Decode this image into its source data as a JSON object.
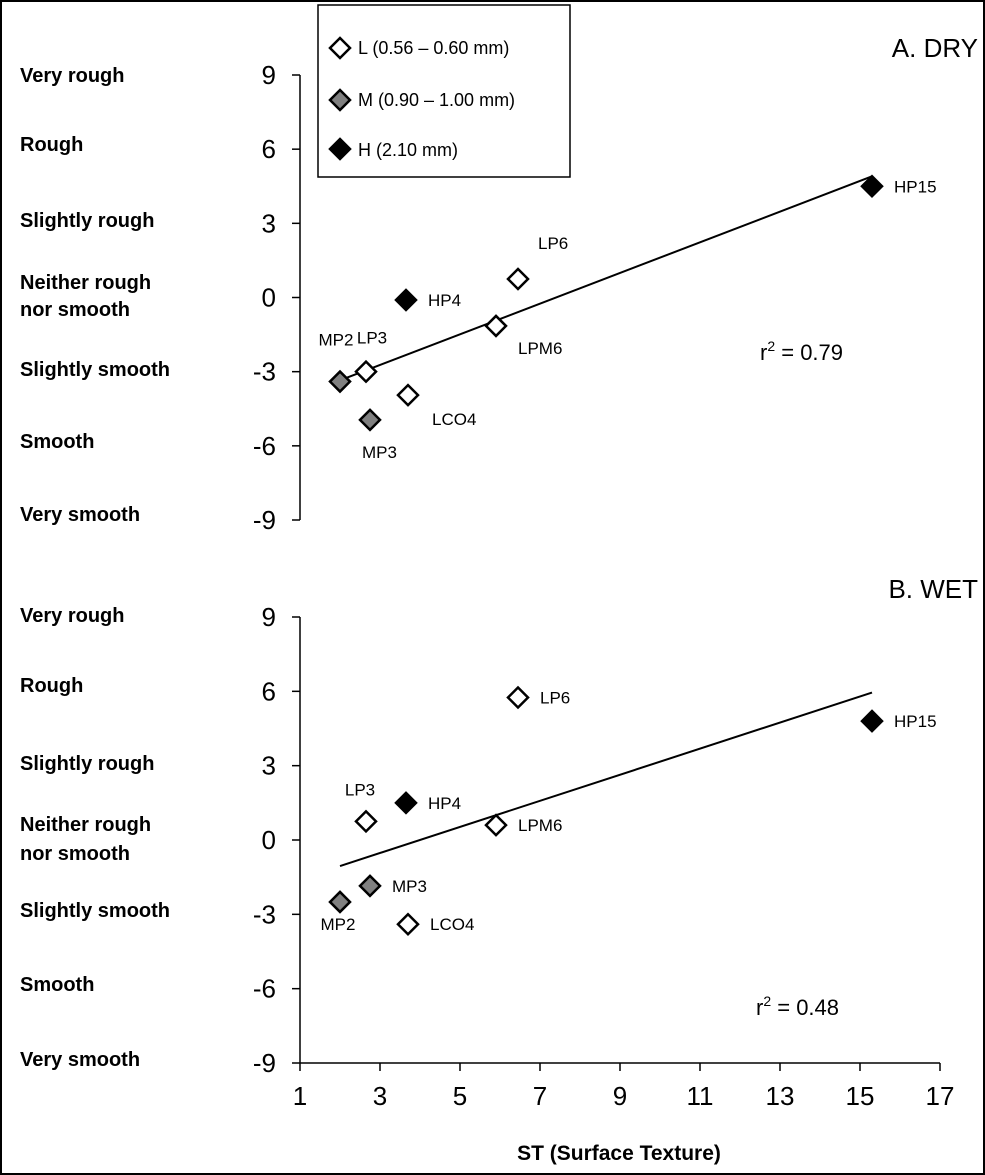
{
  "chart_data": [
    {
      "type": "scatter",
      "title": "A. DRY",
      "annotation": "r² = 0.79",
      "r2_text": "r",
      "r2_sup": "2",
      "r2_value": " = 0.79",
      "xlim": [
        1,
        17
      ],
      "ylim": [
        -9,
        9
      ],
      "yticks": [
        9,
        6,
        3,
        0,
        -3,
        -6,
        -9
      ],
      "y_categories": [
        "Very rough",
        "Rough",
        "Slightly rough",
        "Neither rough nor smooth",
        "Slightly smooth",
        "Smooth",
        "Very smooth"
      ],
      "legend_position": "top-left",
      "points": [
        {
          "label": "HP15",
          "group": "H",
          "x": 15.3,
          "y": 4.5
        },
        {
          "label": "LP6",
          "group": "L",
          "x": 6.45,
          "y": 0.75
        },
        {
          "label": "HP4",
          "group": "H",
          "x": 3.65,
          "y": -0.1
        },
        {
          "label": "LPM6",
          "group": "L",
          "x": 5.9,
          "y": -1.15
        },
        {
          "label": "LP3",
          "group": "L",
          "x": 2.65,
          "y": -3.0
        },
        {
          "label": "MP2",
          "group": "M",
          "x": 2.0,
          "y": -3.4
        },
        {
          "label": "LCO4",
          "group": "L",
          "x": 3.7,
          "y": -3.95
        },
        {
          "label": "MP3",
          "group": "M",
          "x": 2.75,
          "y": -4.95
        }
      ],
      "trendline": {
        "x": [
          2.0,
          15.3
        ],
        "y": [
          -3.35,
          4.9
        ]
      }
    },
    {
      "type": "scatter",
      "title": "B. WET",
      "annotation": "r² = 0.48",
      "r2_text": "r",
      "r2_sup": "2",
      "r2_value": " = 0.48",
      "xlabel": "ST (Surface Texture)",
      "xlim": [
        1,
        17
      ],
      "ylim": [
        -9,
        9
      ],
      "xticks": [
        1,
        3,
        5,
        7,
        9,
        11,
        13,
        15,
        17
      ],
      "yticks": [
        9,
        6,
        3,
        0,
        -3,
        -6,
        -9
      ],
      "y_categories": [
        "Very rough",
        "Rough",
        "Slightly rough",
        "Neither rough nor smooth",
        "Slightly smooth",
        "Smooth",
        "Very smooth"
      ],
      "points": [
        {
          "label": "LP6",
          "group": "L",
          "x": 6.45,
          "y": 5.75
        },
        {
          "label": "HP15",
          "group": "H",
          "x": 15.3,
          "y": 4.8
        },
        {
          "label": "HP4",
          "group": "H",
          "x": 3.65,
          "y": 1.5
        },
        {
          "label": "LP3",
          "group": "L",
          "x": 2.65,
          "y": 0.75
        },
        {
          "label": "LPM6",
          "group": "L",
          "x": 5.9,
          "y": 0.6
        },
        {
          "label": "MP3",
          "group": "M",
          "x": 2.75,
          "y": -1.85
        },
        {
          "label": "MP2",
          "group": "M",
          "x": 2.0,
          "y": -2.5
        },
        {
          "label": "LCO4",
          "group": "L",
          "x": 3.7,
          "y": -3.4
        }
      ],
      "trendline": {
        "x": [
          2.0,
          15.3
        ],
        "y": [
          -1.05,
          5.95
        ]
      }
    }
  ],
  "legend": [
    {
      "group": "L",
      "label": "L (0.56 – 0.60 mm)",
      "fill": "#ffffff",
      "stroke": "#000000"
    },
    {
      "group": "M",
      "label": "M (0.90 – 1.00 mm)",
      "fill": "#808080",
      "stroke": "#000000"
    },
    {
      "group": "H",
      "label": "H (2.10 mm)",
      "fill": "#000000",
      "stroke": "#000000"
    }
  ],
  "colors": {
    "L": "#ffffff",
    "M": "#808080",
    "H": "#000000",
    "axis": "#000000",
    "border": "#000000"
  }
}
